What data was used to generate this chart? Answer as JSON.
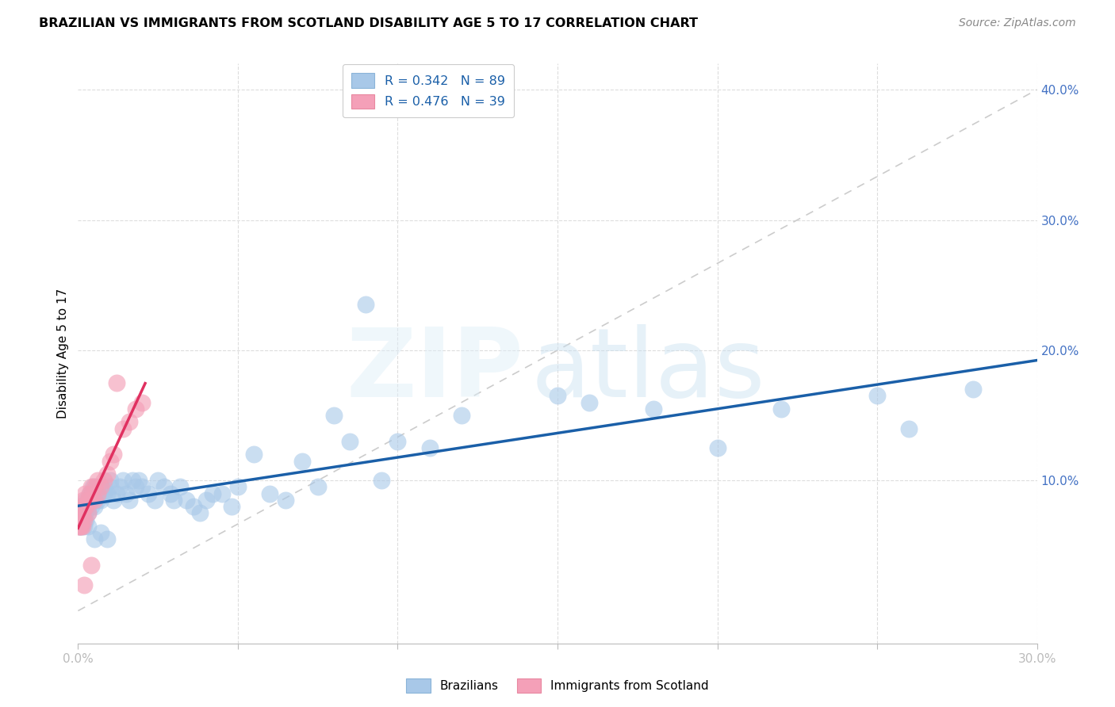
{
  "title": "BRAZILIAN VS IMMIGRANTS FROM SCOTLAND DISABILITY AGE 5 TO 17 CORRELATION CHART",
  "source": "Source: ZipAtlas.com",
  "ylabel": "Disability Age 5 to 17",
  "xlim": [
    0.0,
    0.3
  ],
  "ylim": [
    -0.025,
    0.42
  ],
  "blue_color": "#a8c8e8",
  "pink_color": "#f4a0b8",
  "blue_line_color": "#1a5fa8",
  "pink_line_color": "#e03060",
  "ref_line_color": "#cccccc",
  "tick_color": "#4472c4",
  "grid_color": "#dddddd",
  "blue_R": 0.342,
  "blue_N": 89,
  "pink_R": 0.476,
  "pink_N": 39,
  "xtick_vals": [
    0.0,
    0.05,
    0.1,
    0.15,
    0.2,
    0.25,
    0.3
  ],
  "xtick_labels_shown": [
    "0.0%",
    "",
    "",
    "",
    "",
    "",
    "30.0%"
  ],
  "ytick_vals": [
    0.0,
    0.1,
    0.2,
    0.3,
    0.4
  ],
  "ytick_labels": [
    "",
    "10.0%",
    "20.0%",
    "30.0%",
    "40.0%"
  ],
  "blue_x": [
    0.0003,
    0.0005,
    0.0007,
    0.0008,
    0.001,
    0.001,
    0.001,
    0.0012,
    0.0013,
    0.0015,
    0.0015,
    0.0017,
    0.0018,
    0.002,
    0.002,
    0.002,
    0.0022,
    0.0023,
    0.0025,
    0.0025,
    0.003,
    0.003,
    0.003,
    0.0035,
    0.004,
    0.004,
    0.004,
    0.0045,
    0.005,
    0.005,
    0.0055,
    0.006,
    0.006,
    0.007,
    0.007,
    0.008,
    0.008,
    0.009,
    0.01,
    0.01,
    0.011,
    0.012,
    0.013,
    0.014,
    0.015,
    0.016,
    0.017,
    0.018,
    0.019,
    0.02,
    0.022,
    0.024,
    0.025,
    0.027,
    0.029,
    0.03,
    0.032,
    0.034,
    0.036,
    0.038,
    0.04,
    0.042,
    0.045,
    0.048,
    0.05,
    0.055,
    0.06,
    0.065,
    0.07,
    0.075,
    0.08,
    0.085,
    0.09,
    0.095,
    0.1,
    0.11,
    0.12,
    0.15,
    0.16,
    0.18,
    0.2,
    0.22,
    0.25,
    0.26,
    0.28,
    0.003,
    0.005,
    0.007,
    0.009
  ],
  "blue_y": [
    0.065,
    0.07,
    0.065,
    0.075,
    0.07,
    0.075,
    0.08,
    0.065,
    0.08,
    0.07,
    0.075,
    0.08,
    0.065,
    0.07,
    0.075,
    0.08,
    0.075,
    0.085,
    0.07,
    0.08,
    0.075,
    0.08,
    0.085,
    0.09,
    0.08,
    0.085,
    0.09,
    0.095,
    0.08,
    0.09,
    0.095,
    0.085,
    0.09,
    0.085,
    0.095,
    0.09,
    0.095,
    0.09,
    0.095,
    0.1,
    0.085,
    0.09,
    0.095,
    0.1,
    0.09,
    0.085,
    0.1,
    0.095,
    0.1,
    0.095,
    0.09,
    0.085,
    0.1,
    0.095,
    0.09,
    0.085,
    0.095,
    0.085,
    0.08,
    0.075,
    0.085,
    0.09,
    0.09,
    0.08,
    0.095,
    0.12,
    0.09,
    0.085,
    0.115,
    0.095,
    0.15,
    0.13,
    0.235,
    0.1,
    0.13,
    0.125,
    0.15,
    0.165,
    0.16,
    0.155,
    0.125,
    0.155,
    0.165,
    0.14,
    0.17,
    0.065,
    0.055,
    0.06,
    0.055
  ],
  "pink_x": [
    0.0002,
    0.0004,
    0.0005,
    0.0006,
    0.0007,
    0.0008,
    0.001,
    0.001,
    0.001,
    0.0012,
    0.0013,
    0.0015,
    0.0015,
    0.0017,
    0.002,
    0.002,
    0.0022,
    0.0025,
    0.003,
    0.003,
    0.0035,
    0.004,
    0.004,
    0.005,
    0.005,
    0.006,
    0.006,
    0.007,
    0.008,
    0.009,
    0.01,
    0.011,
    0.012,
    0.014,
    0.016,
    0.018,
    0.02,
    0.002,
    0.004
  ],
  "pink_y": [
    0.065,
    0.07,
    0.065,
    0.075,
    0.065,
    0.075,
    0.065,
    0.075,
    0.08,
    0.07,
    0.075,
    0.065,
    0.08,
    0.085,
    0.07,
    0.08,
    0.09,
    0.08,
    0.075,
    0.085,
    0.09,
    0.085,
    0.095,
    0.085,
    0.095,
    0.09,
    0.1,
    0.095,
    0.1,
    0.105,
    0.115,
    0.12,
    0.175,
    0.14,
    0.145,
    0.155,
    0.16,
    0.02,
    0.035
  ]
}
